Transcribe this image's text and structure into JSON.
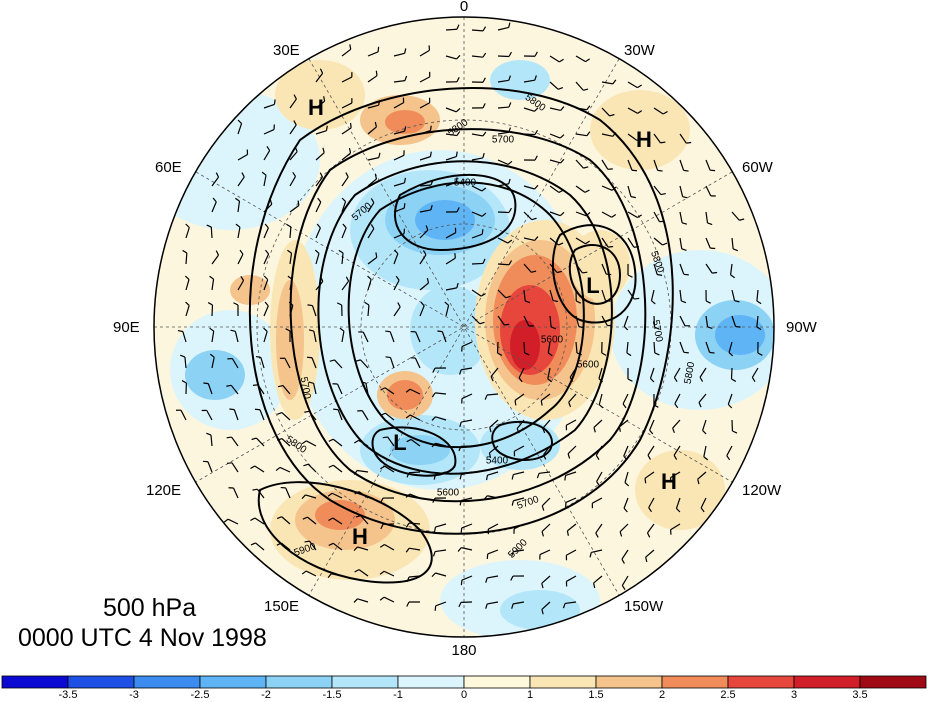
{
  "title": {
    "level": "500 hPa",
    "time": "0000 UTC 4 Nov 1998"
  },
  "longitude_labels": {
    "l0": "0",
    "l30e": "30E",
    "l30w": "30W",
    "l60e": "60E",
    "l60w": "60W",
    "l90e": "90E",
    "l90w": "90W",
    "l120e": "120E",
    "l120w": "120W",
    "l150e": "150E",
    "l150w": "150W",
    "l180": "180"
  },
  "pressure_centers": {
    "h1": "H",
    "h2": "H",
    "h3": "H",
    "h4": "H",
    "l1": "L",
    "l2": "L"
  },
  "contour_labels": {
    "c1": "5800",
    "c2": "5800",
    "c3": "5700",
    "c4": "5400",
    "c5": "5700",
    "c6": "5800",
    "c7": "5700",
    "c8": "5600",
    "c9": "5600",
    "c10": "5800",
    "c11": "5700",
    "c12": "5800",
    "c13": "5400",
    "c14": "5600",
    "c15": "5700",
    "c16": "5900",
    "c17": "5900"
  },
  "colorbar": {
    "ticks": [
      "-3.5",
      "-3",
      "-2.5",
      "-2",
      "-1.5",
      "-1",
      "0",
      "1",
      "1.5",
      "2",
      "2.5",
      "3",
      "3.5"
    ],
    "colors": [
      "#0a0ad2",
      "#1e50e6",
      "#3c8cf0",
      "#5fb4f5",
      "#8cd2f5",
      "#b4e6fa",
      "#dcf5fc",
      "#fff8dc",
      "#fae6b4",
      "#f5c38c",
      "#f08c5a",
      "#e6463c",
      "#d21e28",
      "#a00a14"
    ]
  }
}
